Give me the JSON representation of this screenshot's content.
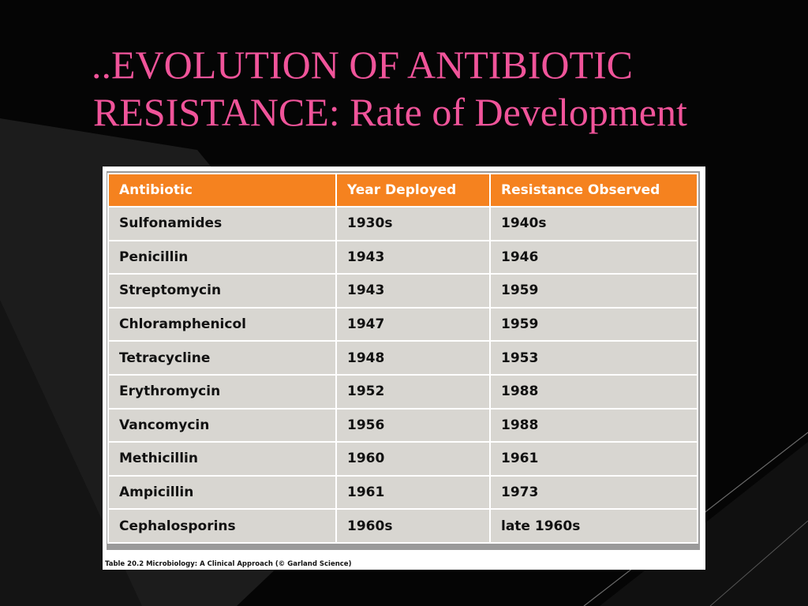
{
  "slide": {
    "title_line1": "..EVOLUTION OF ANTIBIOTIC",
    "title_line2": "RESISTANCE: Rate of Development",
    "colors": {
      "title": "#f0549a",
      "background": "#050505",
      "header": "#f5821f",
      "cell": "#d8d6d1"
    }
  },
  "table": {
    "headers": [
      "Antibiotic",
      "Year Deployed",
      "Resistance Observed"
    ],
    "rows": [
      [
        "Sulfonamides",
        "1930s",
        "1940s"
      ],
      [
        "Penicillin",
        "1943",
        "1946"
      ],
      [
        "Streptomycin",
        "1943",
        "1959"
      ],
      [
        "Chloramphenicol",
        "1947",
        "1959"
      ],
      [
        "Tetracycline",
        "1948",
        "1953"
      ],
      [
        "Erythromycin",
        "1952",
        "1988"
      ],
      [
        "Vancomycin",
        "1956",
        "1988"
      ],
      [
        "Methicillin",
        "1960",
        "1961"
      ],
      [
        "Ampicillin",
        "1961",
        "1973"
      ],
      [
        "Cephalosporins",
        "1960s",
        "late 1960s"
      ]
    ],
    "caption": "Table 20.2  Microbiology: A Clinical Approach (© Garland Science)"
  }
}
